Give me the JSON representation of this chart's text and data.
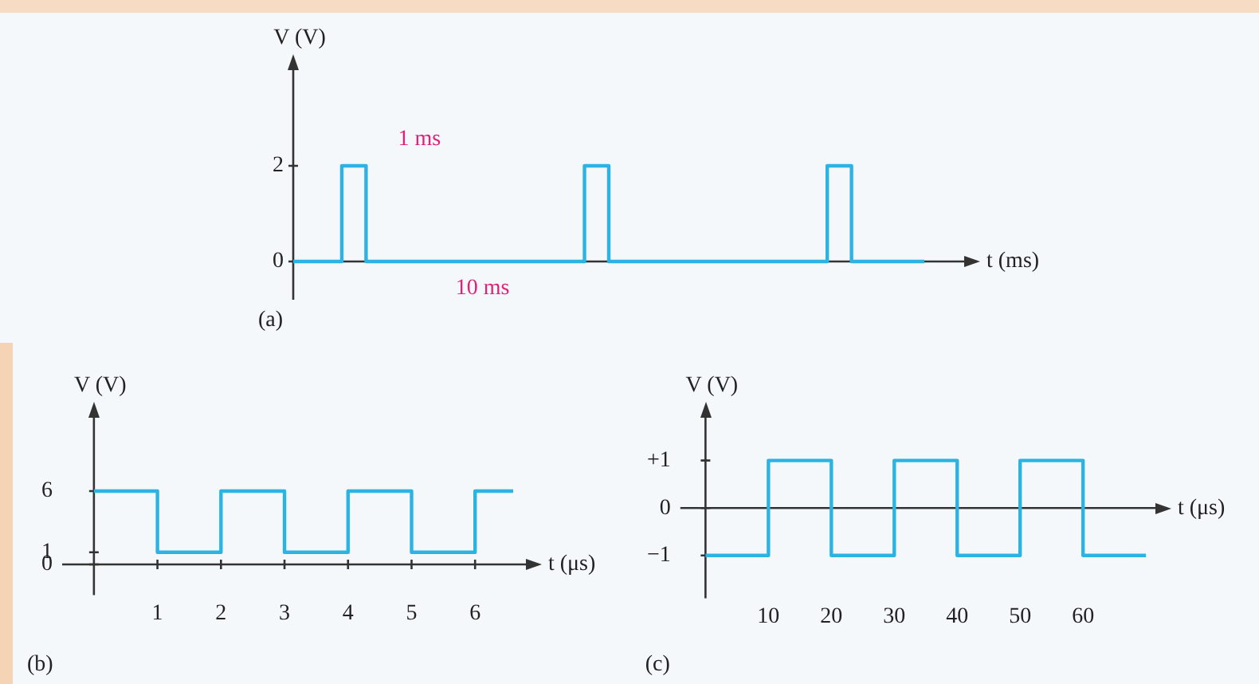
{
  "chart_data": [
    {
      "type": "step",
      "ylabel": "V (V)",
      "xlabel": "t (ms)",
      "categories": [
        null,
        null,
        null,
        null,
        null,
        null,
        null,
        null,
        null,
        null,
        null,
        null,
        null,
        null,
        null,
        null,
        null,
        null,
        null,
        null,
        null,
        null,
        null,
        null,
        null,
        null,
        null
      ],
      "ylim": [
        -0.8,
        4
      ],
      "yticks": [
        0,
        2
      ],
      "tick_labels": "y",
      "marker": "none",
      "series": [
        {
          "values": [
            0,
            0,
            2,
            0,
            0,
            0,
            0,
            0,
            0,
            0,
            0,
            0,
            2,
            0,
            0,
            0,
            0,
            0,
            0,
            0,
            0,
            0,
            2,
            0,
            0,
            0,
            0
          ],
          "color": "#2bb3e3"
        }
      ],
      "annotations": [
        "1 ms",
        "10 ms",
        "(a)"
      ]
    },
    {
      "type": "step",
      "ylabel": "V (V)",
      "xlabel": "t (μs)",
      "x": [
        0,
        1,
        2,
        3,
        4,
        5,
        6,
        6.6
      ],
      "xlim": [
        -0.5,
        6.8
      ],
      "ylim": [
        -2.5,
        12
      ],
      "xticks": [
        1,
        2,
        3,
        4,
        5,
        6
      ],
      "yticks": [
        0,
        1,
        6
      ],
      "marker": "none",
      "series": [
        {
          "values": [
            6,
            1,
            6,
            1,
            6,
            1,
            6,
            6
          ],
          "color": "#2bb3e3"
        }
      ],
      "annotations": [
        "(b)"
      ]
    },
    {
      "type": "step",
      "ylabel": "V (V)",
      "xlabel": "t (μs)",
      "x": [
        0,
        10,
        20,
        30,
        40,
        50,
        60,
        70
      ],
      "xlim": [
        -4,
        71.5
      ],
      "ylim": [
        -1.9,
        1.9
      ],
      "xticks": [
        10,
        20,
        30,
        40,
        50,
        60
      ],
      "yticks": [
        {
          "value": 1,
          "label": "+1"
        },
        0,
        {
          "value": -1,
          "label": "−1"
        }
      ],
      "marker": "none",
      "series": [
        {
          "values": [
            -1,
            1,
            -1,
            1,
            -1,
            1,
            -1,
            -1
          ],
          "color": "#2bb3e3"
        }
      ],
      "annotations": [
        "(c)"
      ]
    }
  ]
}
